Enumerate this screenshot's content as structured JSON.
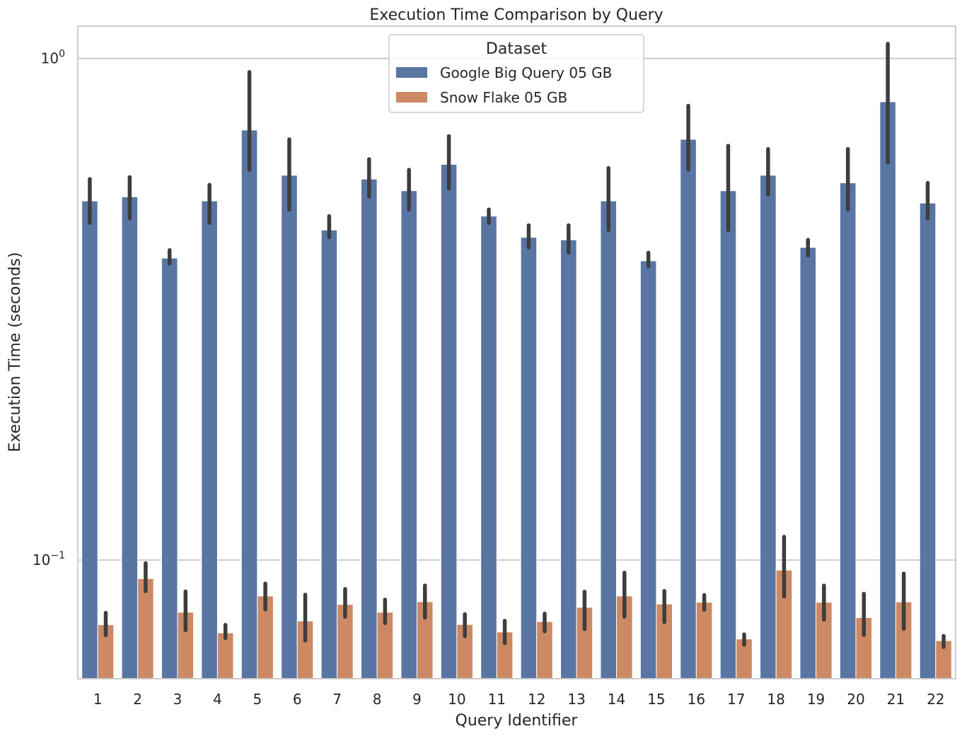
{
  "chart_data": {
    "type": "bar",
    "title": "Execution Time Comparison by Query",
    "xlabel": "Query Identifier",
    "ylabel": "Execution Time (seconds)",
    "yscale": "log",
    "ylim": [
      0.058,
      1.16
    ],
    "yticks": [
      {
        "value": 1,
        "base": "10",
        "exp": "0"
      },
      {
        "value": 0.1,
        "base": "10",
        "exp": "−1"
      }
    ],
    "grid": "horizontal",
    "legend": {
      "title": "Dataset",
      "placement": "upper center"
    },
    "categories": [
      "1",
      "2",
      "3",
      "4",
      "5",
      "6",
      "7",
      "8",
      "9",
      "10",
      "11",
      "12",
      "13",
      "14",
      "15",
      "16",
      "17",
      "18",
      "19",
      "20",
      "21",
      "22"
    ],
    "series": [
      {
        "name": "Google Big Query 05 GB",
        "color": "#5875a4",
        "values": [
          0.52,
          0.53,
          0.4,
          0.52,
          0.72,
          0.585,
          0.455,
          0.575,
          0.545,
          0.615,
          0.485,
          0.44,
          0.435,
          0.52,
          0.395,
          0.69,
          0.545,
          0.585,
          0.42,
          0.565,
          0.82,
          0.515
        ],
        "err_low": [
          0.47,
          0.48,
          0.39,
          0.47,
          0.6,
          0.5,
          0.44,
          0.53,
          0.5,
          0.55,
          0.47,
          0.42,
          0.41,
          0.455,
          0.385,
          0.6,
          0.455,
          0.535,
          0.405,
          0.5,
          0.62,
          0.48
        ],
        "err_high": [
          0.575,
          0.58,
          0.415,
          0.56,
          0.94,
          0.69,
          0.485,
          0.63,
          0.6,
          0.7,
          0.5,
          0.465,
          0.465,
          0.605,
          0.41,
          0.805,
          0.67,
          0.66,
          0.435,
          0.66,
          1.07,
          0.565
        ]
      },
      {
        "name": "Snow Flake 05 GB",
        "color": "#cc8963",
        "values": [
          0.0743,
          0.0918,
          0.0787,
          0.0716,
          0.0848,
          0.0756,
          0.0816,
          0.0787,
          0.0826,
          0.0744,
          0.0719,
          0.0754,
          0.0805,
          0.0848,
          0.0817,
          0.0824,
          0.0696,
          0.0955,
          0.0824,
          0.0768,
          0.0825,
          0.0691
        ],
        "err_low": [
          0.0708,
          0.0867,
          0.0725,
          0.0699,
          0.0797,
          0.0691,
          0.0771,
          0.0749,
          0.0768,
          0.0705,
          0.0683,
          0.0721,
          0.0728,
          0.0771,
          0.0752,
          0.0796,
          0.0678,
          0.0846,
          0.0761,
          0.0709,
          0.0729,
          0.0671
        ],
        "err_high": [
          0.0785,
          0.0986,
          0.0866,
          0.0743,
          0.0898,
          0.0853,
          0.0876,
          0.0834,
          0.089,
          0.078,
          0.0757,
          0.0782,
          0.0865,
          0.0944,
          0.0868,
          0.0852,
          0.0711,
          0.1113,
          0.089,
          0.0857,
          0.094,
          0.0706
        ]
      }
    ]
  }
}
